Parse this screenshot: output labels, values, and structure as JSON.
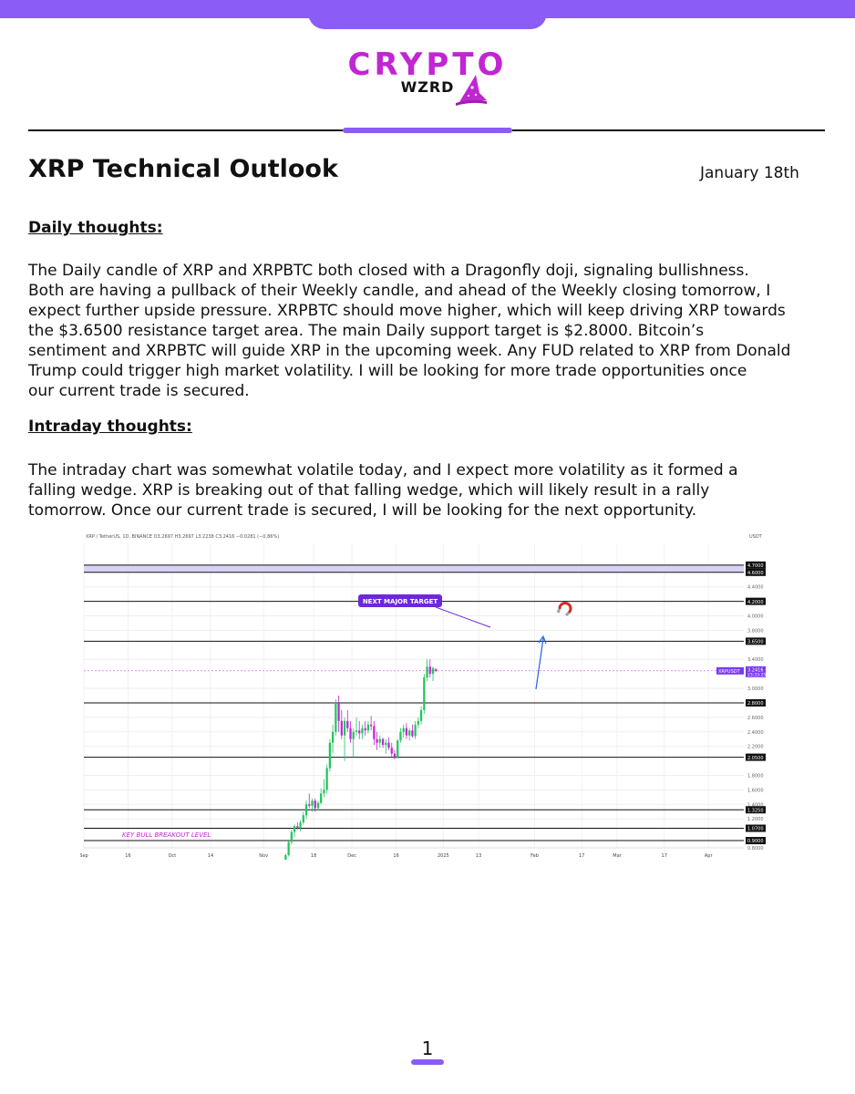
{
  "brand": {
    "main": "CRYPTO",
    "sub": "WZRD",
    "accent_color": "#8b5cf6",
    "logo_color": "#c026d3"
  },
  "header": {
    "title": "XRP Technical Outlook",
    "date": "January 18th"
  },
  "daily": {
    "heading": "Daily thoughts:",
    "lines": [
      "The Daily candle of XRP and XRPBTC both closed with a Dragonfly doji, signaling bullishness.",
      "Both are having a pullback of their Weekly candle, and ahead of the Weekly closing tomorrow, I",
      "expect further upside pressure. XRPBTC should move higher, which will keep driving XRP towards",
      "the $3.6500 resistance target area. The main Daily support target is $2.8000. Bitcoin’s",
      "sentiment and XRPBTC will guide XRP in the upcoming week. Any FUD related to XRP from Donald",
      "Trump could trigger high market volatility. I will be looking for more trade opportunities once",
      "our current trade is secured."
    ]
  },
  "intraday": {
    "heading": "Intraday thoughts:",
    "lines": [
      "The intraday chart was somewhat volatile today, and I expect more volatility as it formed a",
      "falling wedge. XRP is breaking out of that falling wedge, which will likely result in a rally",
      "tomorrow. Once our current trade is secured, I will be looking for the next opportunity."
    ]
  },
  "chart_data": {
    "type": "candlestick",
    "header": "XRP / TetherUS, 1D, BINANCE  O3.2697  H3.2697  L3.2238  C3.2416  −0.0281 (−0.86%)",
    "currency": "USDT",
    "ylim": [
      0.8,
      5.0
    ],
    "y_ticks": [
      {
        "label": "4.4000",
        "value": 4.4
      },
      {
        "label": "4.0000",
        "value": 4.0
      },
      {
        "label": "3.8000",
        "value": 3.8
      },
      {
        "label": "3.4000",
        "value": 3.4
      },
      {
        "label": "3.0000",
        "value": 3.0
      },
      {
        "label": "2.6000",
        "value": 2.6
      },
      {
        "label": "2.4000",
        "value": 2.4
      },
      {
        "label": "2.2000",
        "value": 2.2
      },
      {
        "label": "1.8000",
        "value": 1.8
      },
      {
        "label": "1.6000",
        "value": 1.6
      },
      {
        "label": "1.4000",
        "value": 1.4
      },
      {
        "label": "1.2000",
        "value": 1.2
      },
      {
        "label": "0.8000",
        "value": 0.8
      }
    ],
    "levels": [
      {
        "label": "4.7000",
        "value": 4.7
      },
      {
        "label": "4.6000",
        "value": 4.6
      },
      {
        "label": "4.2000",
        "value": 4.2
      },
      {
        "label": "3.6500",
        "value": 3.65
      },
      {
        "label": "2.8000",
        "value": 2.8
      },
      {
        "label": "2.0500",
        "value": 2.05
      },
      {
        "label": "1.3250",
        "value": 1.325
      },
      {
        "label": "1.0700",
        "value": 1.07
      },
      {
        "label": "0.9000",
        "value": 0.9
      }
    ],
    "price_tag": {
      "symbol": "XRPUSDT",
      "value": "3.2416",
      "timer": "23:33:25",
      "price": 3.2416
    },
    "x_ticks": [
      {
        "label": "Sep",
        "day": 0
      },
      {
        "label": "16",
        "day": 15
      },
      {
        "label": "Oct",
        "day": 30
      },
      {
        "label": "14",
        "day": 43
      },
      {
        "label": "Nov",
        "day": 61
      },
      {
        "label": "18",
        "day": 78
      },
      {
        "label": "Dec",
        "day": 91
      },
      {
        "label": "16",
        "day": 106
      },
      {
        "label": "2025",
        "day": 122
      },
      {
        "label": "13",
        "day": 134
      },
      {
        "label": "Feb",
        "day": 153
      },
      {
        "label": "17",
        "day": 169
      },
      {
        "label": "Mar",
        "day": 181
      },
      {
        "label": "17",
        "day": 197
      },
      {
        "label": "Apr",
        "day": 212
      }
    ],
    "annotations": {
      "target_label": "NEXT MAJOR TARGET",
      "breakout_label": "KEY BULL BREAKOUT LEVEL"
    },
    "candles": [
      {
        "o": 0.55,
        "h": 0.6,
        "l": 0.53,
        "c": 0.58
      },
      {
        "o": 0.58,
        "h": 0.72,
        "l": 0.57,
        "c": 0.7
      },
      {
        "o": 0.7,
        "h": 0.9,
        "l": 0.68,
        "c": 0.88
      },
      {
        "o": 0.88,
        "h": 1.05,
        "l": 0.85,
        "c": 1.02
      },
      {
        "o": 1.02,
        "h": 1.12,
        "l": 0.95,
        "c": 1.1
      },
      {
        "o": 1.1,
        "h": 1.15,
        "l": 1.05,
        "c": 1.08
      },
      {
        "o": 1.08,
        "h": 1.18,
        "l": 1.03,
        "c": 1.15
      },
      {
        "o": 1.15,
        "h": 1.3,
        "l": 1.12,
        "c": 1.25
      },
      {
        "o": 1.25,
        "h": 1.45,
        "l": 1.2,
        "c": 1.4
      },
      {
        "o": 1.4,
        "h": 1.55,
        "l": 1.35,
        "c": 1.38
      },
      {
        "o": 1.38,
        "h": 1.48,
        "l": 1.3,
        "c": 1.45
      },
      {
        "o": 1.45,
        "h": 1.48,
        "l": 1.3,
        "c": 1.35
      },
      {
        "o": 1.35,
        "h": 1.45,
        "l": 1.32,
        "c": 1.42
      },
      {
        "o": 1.42,
        "h": 1.62,
        "l": 1.4,
        "c": 1.55
      },
      {
        "o": 1.55,
        "h": 1.75,
        "l": 1.5,
        "c": 1.6
      },
      {
        "o": 1.6,
        "h": 1.95,
        "l": 1.55,
        "c": 1.9
      },
      {
        "o": 1.9,
        "h": 2.3,
        "l": 1.85,
        "c": 2.25
      },
      {
        "o": 2.25,
        "h": 2.5,
        "l": 2.1,
        "c": 2.4
      },
      {
        "o": 2.4,
        "h": 2.85,
        "l": 2.35,
        "c": 2.8
      },
      {
        "o": 2.8,
        "h": 2.9,
        "l": 2.4,
        "c": 2.55
      },
      {
        "o": 2.55,
        "h": 2.7,
        "l": 2.3,
        "c": 2.35
      },
      {
        "o": 2.35,
        "h": 2.6,
        "l": 2.0,
        "c": 2.55
      },
      {
        "o": 2.55,
        "h": 2.7,
        "l": 2.4,
        "c": 2.45
      },
      {
        "o": 2.45,
        "h": 2.55,
        "l": 2.25,
        "c": 2.3
      },
      {
        "o": 2.3,
        "h": 2.45,
        "l": 2.05,
        "c": 2.4
      },
      {
        "o": 2.4,
        "h": 2.6,
        "l": 2.35,
        "c": 2.42
      },
      {
        "o": 2.42,
        "h": 2.55,
        "l": 2.3,
        "c": 2.38
      },
      {
        "o": 2.38,
        "h": 2.5,
        "l": 2.3,
        "c": 2.45
      },
      {
        "o": 2.45,
        "h": 2.55,
        "l": 2.35,
        "c": 2.42
      },
      {
        "o": 2.42,
        "h": 2.55,
        "l": 2.38,
        "c": 2.5
      },
      {
        "o": 2.5,
        "h": 2.62,
        "l": 2.42,
        "c": 2.48
      },
      {
        "o": 2.48,
        "h": 2.55,
        "l": 2.22,
        "c": 2.3
      },
      {
        "o": 2.3,
        "h": 2.4,
        "l": 2.15,
        "c": 2.25
      },
      {
        "o": 2.25,
        "h": 2.35,
        "l": 2.18,
        "c": 2.3
      },
      {
        "o": 2.3,
        "h": 2.32,
        "l": 2.18,
        "c": 2.22
      },
      {
        "o": 2.22,
        "h": 2.3,
        "l": 2.1,
        "c": 2.25
      },
      {
        "o": 2.25,
        "h": 2.32,
        "l": 2.15,
        "c": 2.18
      },
      {
        "o": 2.18,
        "h": 2.25,
        "l": 2.05,
        "c": 2.1
      },
      {
        "o": 2.1,
        "h": 2.15,
        "l": 2.02,
        "c": 2.05
      },
      {
        "o": 2.05,
        "h": 2.3,
        "l": 2.03,
        "c": 2.28
      },
      {
        "o": 2.28,
        "h": 2.45,
        "l": 2.25,
        "c": 2.4
      },
      {
        "o": 2.4,
        "h": 2.5,
        "l": 2.32,
        "c": 2.45
      },
      {
        "o": 2.45,
        "h": 2.52,
        "l": 2.3,
        "c": 2.35
      },
      {
        "o": 2.35,
        "h": 2.45,
        "l": 2.28,
        "c": 2.42
      },
      {
        "o": 2.42,
        "h": 2.5,
        "l": 2.32,
        "c": 2.34
      },
      {
        "o": 2.34,
        "h": 2.55,
        "l": 2.3,
        "c": 2.5
      },
      {
        "o": 2.5,
        "h": 2.6,
        "l": 2.45,
        "c": 2.55
      },
      {
        "o": 2.55,
        "h": 2.75,
        "l": 2.5,
        "c": 2.7
      },
      {
        "o": 2.7,
        "h": 3.2,
        "l": 2.65,
        "c": 3.15
      },
      {
        "o": 3.15,
        "h": 3.4,
        "l": 3.1,
        "c": 3.3
      },
      {
        "o": 3.3,
        "h": 3.4,
        "l": 3.15,
        "c": 3.2
      },
      {
        "o": 3.2,
        "h": 3.3,
        "l": 3.1,
        "c": 3.28
      },
      {
        "o": 3.2697,
        "h": 3.2697,
        "l": 3.2238,
        "c": 3.2416
      }
    ],
    "candle_start_day": 67
  }
}
